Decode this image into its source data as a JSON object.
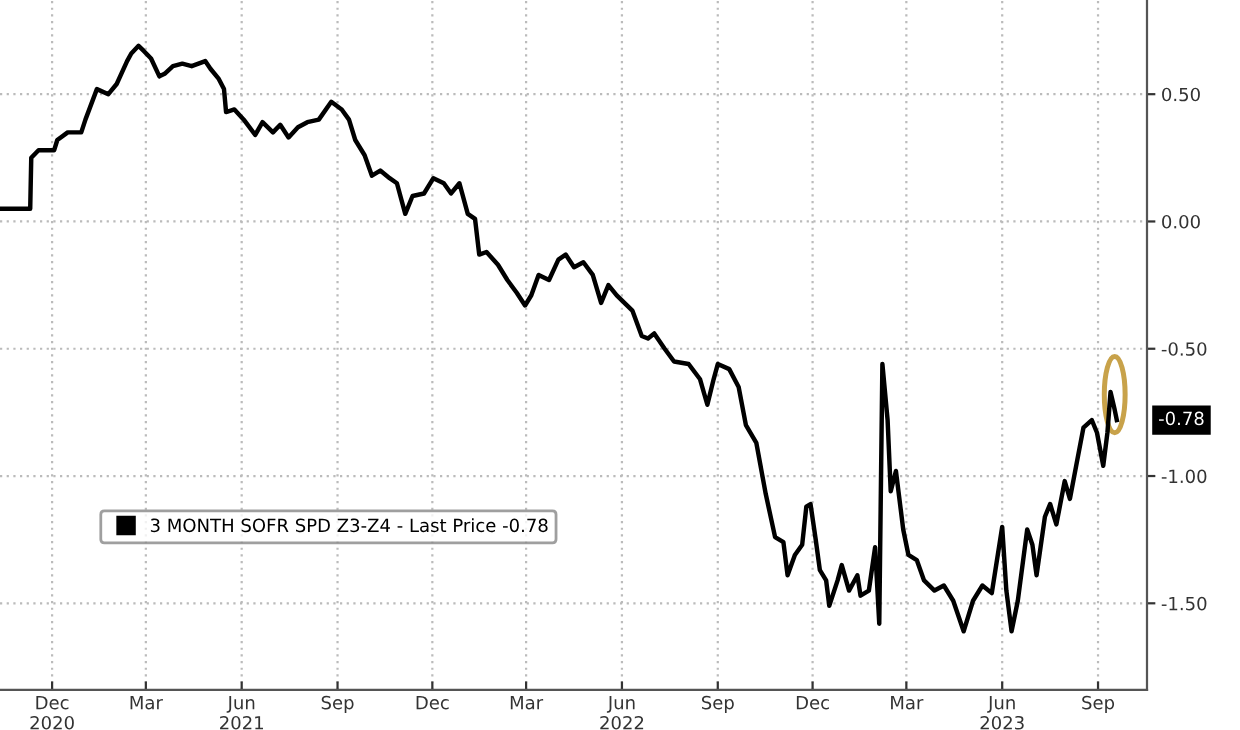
{
  "chart_data": {
    "type": "line",
    "line_style": "solid",
    "marker": "none",
    "grid": true,
    "legend": "bottom left",
    "xlim": [
      "2020-10-12",
      "2023-10-18"
    ],
    "ylim": [
      -1.84,
      0.87
    ],
    "xticks": [
      {
        "value": "2020-12-01",
        "label": "Dec\n2020"
      },
      {
        "value": "2021-03-01",
        "label": "Mar"
      },
      {
        "value": "2021-06-01",
        "label": "Jun\n2021"
      },
      {
        "value": "2021-09-01",
        "label": "Sep"
      },
      {
        "value": "2021-12-01",
        "label": "Dec"
      },
      {
        "value": "2022-03-01",
        "label": "Mar"
      },
      {
        "value": "2022-06-01",
        "label": "Jun\n2022"
      },
      {
        "value": "2022-09-01",
        "label": "Sep"
      },
      {
        "value": "2022-12-01",
        "label": "Dec"
      },
      {
        "value": "2023-03-01",
        "label": "Mar"
      },
      {
        "value": "2023-06-01",
        "label": "Jun\n2023"
      },
      {
        "value": "2023-09-01",
        "label": "Sep"
      }
    ],
    "yticks": [
      {
        "value": 0.5,
        "label": "0.50"
      },
      {
        "value": 0.0,
        "label": "0.00"
      },
      {
        "value": -0.5,
        "label": "-0.50"
      },
      {
        "value": -1.0,
        "label": "-1.00"
      },
      {
        "value": -1.5,
        "label": "-1.50"
      }
    ],
    "annotations": [
      {
        "text": "-0.78",
        "x": "2023-09-19",
        "y": -0.78
      }
    ],
    "series": [
      {
        "name": "3 MONTH SOFR SPD Z3-Z4 - Last Price -0.78",
        "color": "#000000",
        "x": [
          "2020-10-12",
          "2020-11-10",
          "2020-11-11",
          "2020-11-18",
          "2020-12-03",
          "2020-12-06",
          "2020-12-16",
          "2020-12-29",
          "2021-01-02",
          "2021-01-13",
          "2021-01-24",
          "2021-02-01",
          "2021-02-11",
          "2021-02-15",
          "2021-02-22",
          "2021-02-27",
          "2021-03-06",
          "2021-03-14",
          "2021-03-19",
          "2021-03-27",
          "2021-04-05",
          "2021-04-14",
          "2021-04-27",
          "2021-05-02",
          "2021-05-10",
          "2021-05-15",
          "2021-05-17",
          "2021-05-25",
          "2021-06-03",
          "2021-06-14",
          "2021-06-21",
          "2021-07-01",
          "2021-07-08",
          "2021-07-16",
          "2021-07-25",
          "2021-08-03",
          "2021-08-14",
          "2021-08-26",
          "2021-09-05",
          "2021-09-12",
          "2021-09-18",
          "2021-09-27",
          "2021-10-04",
          "2021-10-12",
          "2021-10-21",
          "2021-10-28",
          "2021-11-05",
          "2021-11-12",
          "2021-11-23",
          "2021-12-02",
          "2021-12-12",
          "2021-12-19",
          "2021-12-27",
          "2022-01-04",
          "2022-01-11",
          "2022-01-15",
          "2022-01-22",
          "2022-02-02",
          "2022-02-11",
          "2022-02-20",
          "2022-02-28",
          "2022-03-06",
          "2022-03-13",
          "2022-03-23",
          "2022-04-01",
          "2022-04-08",
          "2022-04-16",
          "2022-04-25",
          "2022-05-04",
          "2022-05-12",
          "2022-05-19",
          "2022-05-27",
          "2022-06-11",
          "2022-06-20",
          "2022-06-26",
          "2022-07-02",
          "2022-07-12",
          "2022-07-21",
          "2022-08-04",
          "2022-08-15",
          "2022-08-22",
          "2022-08-28",
          "2022-09-01",
          "2022-09-12",
          "2022-09-21",
          "2022-09-28",
          "2022-10-08",
          "2022-10-17",
          "2022-10-26",
          "2022-11-03",
          "2022-11-07",
          "2022-11-14",
          "2022-11-21",
          "2022-11-25",
          "2022-11-29",
          "2022-12-04",
          "2022-12-08",
          "2022-12-14",
          "2022-12-17",
          "2022-12-25",
          "2022-12-29",
          "2023-01-05",
          "2023-01-13",
          "2023-01-16",
          "2023-01-24",
          "2023-01-30",
          "2023-02-03",
          "2023-02-06",
          "2023-02-11",
          "2023-02-14",
          "2023-02-19",
          "2023-02-26",
          "2023-03-03",
          "2023-03-11",
          "2023-03-18",
          "2023-03-28",
          "2023-04-06",
          "2023-04-15",
          "2023-04-25",
          "2023-05-04",
          "2023-05-13",
          "2023-05-22",
          "2023-06-01",
          "2023-06-05",
          "2023-06-10",
          "2023-06-16",
          "2023-06-25",
          "2023-06-30",
          "2023-07-04",
          "2023-07-12",
          "2023-07-17",
          "2023-07-23",
          "2023-07-31",
          "2023-08-05",
          "2023-08-11",
          "2023-08-18",
          "2023-08-26",
          "2023-08-31",
          "2023-09-06",
          "2023-09-10",
          "2023-09-13",
          "2023-09-17",
          "2023-09-19"
        ],
        "values": [
          0.05,
          0.05,
          0.25,
          0.28,
          0.28,
          0.32,
          0.35,
          0.35,
          0.4,
          0.52,
          0.5,
          0.54,
          0.63,
          0.66,
          0.69,
          0.67,
          0.64,
          0.57,
          0.58,
          0.61,
          0.62,
          0.61,
          0.63,
          0.6,
          0.56,
          0.52,
          0.43,
          0.44,
          0.4,
          0.34,
          0.39,
          0.35,
          0.38,
          0.33,
          0.37,
          0.39,
          0.4,
          0.47,
          0.44,
          0.4,
          0.32,
          0.26,
          0.18,
          0.2,
          0.17,
          0.15,
          0.03,
          0.1,
          0.11,
          0.17,
          0.15,
          0.11,
          0.15,
          0.03,
          0.01,
          -0.13,
          -0.12,
          -0.17,
          -0.23,
          -0.28,
          -0.33,
          -0.29,
          -0.21,
          -0.23,
          -0.15,
          -0.13,
          -0.18,
          -0.16,
          -0.21,
          -0.32,
          -0.25,
          -0.29,
          -0.35,
          -0.45,
          -0.46,
          -0.44,
          -0.5,
          -0.55,
          -0.56,
          -0.62,
          -0.72,
          -0.62,
          -0.56,
          -0.58,
          -0.65,
          -0.8,
          -0.87,
          -1.07,
          -1.24,
          -1.26,
          -1.39,
          -1.31,
          -1.27,
          -1.12,
          -1.11,
          -1.25,
          -1.37,
          -1.41,
          -1.51,
          -1.41,
          -1.35,
          -1.45,
          -1.39,
          -1.47,
          -1.45,
          -1.28,
          -1.58,
          -0.56,
          -0.78,
          -1.06,
          -0.98,
          -1.21,
          -1.31,
          -1.33,
          -1.41,
          -1.45,
          -1.43,
          -1.49,
          -1.61,
          -1.49,
          -1.43,
          -1.46,
          -1.2,
          -1.45,
          -1.61,
          -1.49,
          -1.21,
          -1.27,
          -1.39,
          -1.16,
          -1.11,
          -1.19,
          -1.02,
          -1.09,
          -0.96,
          -0.81,
          -0.78,
          -0.83,
          -0.96,
          -0.83,
          -0.67,
          -0.74,
          -0.78
        ]
      }
    ]
  }
}
